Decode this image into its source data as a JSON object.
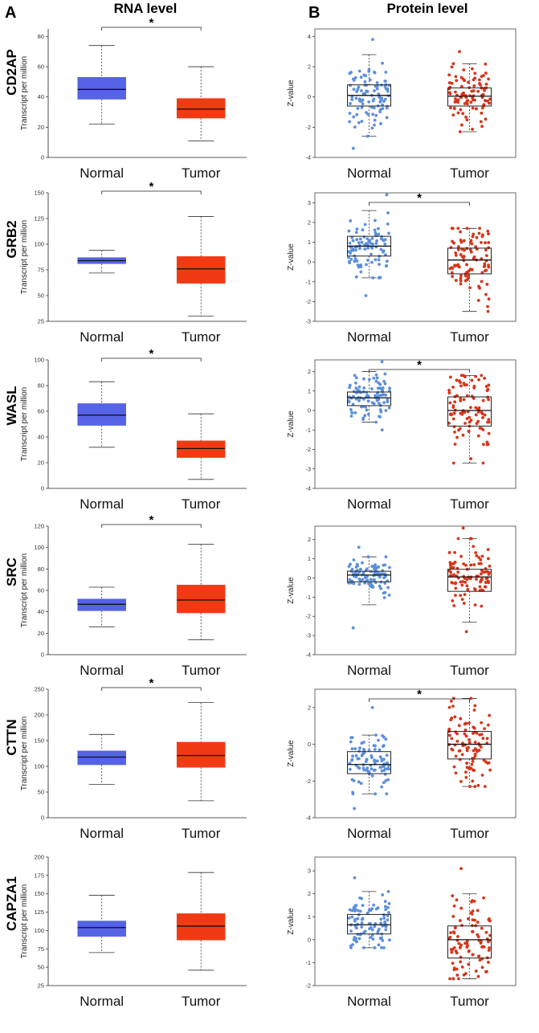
{
  "figure": {
    "panel_a": "A",
    "panel_b": "B",
    "rna_title": "RNA level",
    "protein_title": "Protein level"
  },
  "colors": {
    "normal_rna": "#5563e6",
    "tumor_rna": "#f03a14",
    "normal_dots": "#5b8fdc",
    "tumor_dots": "#d83418"
  },
  "chart_data": [
    {
      "type": "boxplot",
      "gene": "CD2AP",
      "panel": "rna",
      "ylabel": "Transcript per million",
      "categories": [
        "Normal",
        "Tumor"
      ],
      "yticks": [
        0,
        20,
        40,
        60,
        80
      ],
      "ylim": [
        0,
        85
      ],
      "boxes": [
        {
          "name": "Normal",
          "whisker_low": 22,
          "q1": 38.5,
          "median": 45,
          "q3": 53,
          "whisker_high": 74
        },
        {
          "name": "Tumor",
          "whisker_low": 11,
          "q1": 26,
          "median": 32,
          "q3": 39,
          "whisker_high": 60
        }
      ],
      "significance": "*"
    },
    {
      "type": "boxplot",
      "gene": "CD2AP",
      "panel": "protein",
      "ylabel": "Z-value",
      "categories": [
        "Normal",
        "Tumor"
      ],
      "yticks": [
        -4,
        -2,
        0,
        2,
        4
      ],
      "ylim": [
        -4,
        4.5
      ],
      "boxes": [
        {
          "name": "Normal",
          "whisker_low": -2.6,
          "q1": -0.6,
          "median": 0.1,
          "q3": 0.8,
          "whisker_high": 2.8,
          "points_low": -3.4,
          "points_high": 3.8
        },
        {
          "name": "Tumor",
          "whisker_low": -2.3,
          "q1": -0.6,
          "median": 0.05,
          "q3": 0.6,
          "whisker_high": 2.2,
          "points_low": -2.3,
          "points_high": 3.0
        }
      ],
      "significance": ""
    },
    {
      "type": "boxplot",
      "gene": "GRB2",
      "panel": "rna",
      "ylabel": "Transcript per million",
      "categories": [
        "Normal",
        "Tumor"
      ],
      "yticks": [
        25,
        50,
        75,
        100,
        125,
        150
      ],
      "ylim": [
        25,
        150
      ],
      "boxes": [
        {
          "name": "Normal",
          "whisker_low": 72,
          "q1": 81,
          "median": 84,
          "q3": 87,
          "whisker_high": 94
        },
        {
          "name": "Tumor",
          "whisker_low": 30,
          "q1": 62,
          "median": 76,
          "q3": 88,
          "whisker_high": 127
        }
      ],
      "significance": "*"
    },
    {
      "type": "boxplot",
      "gene": "GRB2",
      "panel": "protein",
      "ylabel": "Z-value",
      "categories": [
        "Normal",
        "Tumor"
      ],
      "yticks": [
        -3,
        -2,
        -1,
        0,
        1,
        2,
        3
      ],
      "ylim": [
        -3,
        3.5
      ],
      "boxes": [
        {
          "name": "Normal",
          "whisker_low": -0.8,
          "q1": 0.3,
          "median": 0.8,
          "q3": 1.3,
          "whisker_high": 2.6,
          "points_low": -1.7,
          "points_high": 3.4
        },
        {
          "name": "Tumor",
          "whisker_low": -2.5,
          "q1": -0.6,
          "median": 0.1,
          "q3": 0.7,
          "whisker_high": 1.7,
          "points_low": -2.5,
          "points_high": 1.7
        }
      ],
      "significance": "*"
    },
    {
      "type": "boxplot",
      "gene": "WASL",
      "panel": "rna",
      "ylabel": "Transcript per million",
      "categories": [
        "Normal",
        "Tumor"
      ],
      "yticks": [
        0,
        20,
        40,
        60,
        80,
        100
      ],
      "ylim": [
        0,
        100
      ],
      "boxes": [
        {
          "name": "Normal",
          "whisker_low": 32,
          "q1": 49,
          "median": 57,
          "q3": 66,
          "whisker_high": 83
        },
        {
          "name": "Tumor",
          "whisker_low": 7,
          "q1": 24,
          "median": 31,
          "q3": 37,
          "whisker_high": 58
        }
      ],
      "significance": "*"
    },
    {
      "type": "boxplot",
      "gene": "WASL",
      "panel": "protein",
      "ylabel": "Z-value",
      "categories": [
        "Normal",
        "Tumor"
      ],
      "yticks": [
        -4,
        -3,
        -2,
        -1,
        0,
        1,
        2
      ],
      "ylim": [
        -4,
        2.6
      ],
      "boxes": [
        {
          "name": "Normal",
          "whisker_low": -0.6,
          "q1": 0.25,
          "median": 0.65,
          "q3": 0.95,
          "whisker_high": 2.0,
          "points_low": -1.0,
          "points_high": 2.5
        },
        {
          "name": "Tumor",
          "whisker_low": -2.7,
          "q1": -0.8,
          "median": 0.0,
          "q3": 0.7,
          "whisker_high": 1.8,
          "points_low": -2.7,
          "points_high": 1.8
        }
      ],
      "significance": "*"
    },
    {
      "type": "boxplot",
      "gene": "SRC",
      "panel": "rna",
      "ylabel": "Transcript per million",
      "categories": [
        "Normal",
        "Tumor"
      ],
      "yticks": [
        0,
        20,
        40,
        60,
        80,
        100,
        120
      ],
      "ylim": [
        0,
        120
      ],
      "boxes": [
        {
          "name": "Normal",
          "whisker_low": 26,
          "q1": 41,
          "median": 47,
          "q3": 52,
          "whisker_high": 63
        },
        {
          "name": "Tumor",
          "whisker_low": 14,
          "q1": 39,
          "median": 51,
          "q3": 65,
          "whisker_high": 103
        }
      ],
      "significance": "*"
    },
    {
      "type": "boxplot",
      "gene": "SRC",
      "panel": "protein",
      "ylabel": "Z-value",
      "categories": [
        "Normal",
        "Tumor"
      ],
      "yticks": [
        -4,
        -3,
        -2,
        -1,
        0,
        1,
        2
      ],
      "ylim": [
        -4,
        2.7
      ],
      "boxes": [
        {
          "name": "Normal",
          "whisker_low": -1.4,
          "q1": -0.2,
          "median": 0.15,
          "q3": 0.35,
          "whisker_high": 1.1,
          "points_low": -2.6,
          "points_high": 1.6
        },
        {
          "name": "Tumor",
          "whisker_low": -2.3,
          "q1": -0.7,
          "median": 0.05,
          "q3": 0.45,
          "whisker_high": 2.05,
          "points_low": -2.8,
          "points_high": 2.6
        }
      ],
      "significance": ""
    },
    {
      "type": "boxplot",
      "gene": "CTTN",
      "panel": "rna",
      "ylabel": "Transcript per million",
      "categories": [
        "Normal",
        "Tumor"
      ],
      "yticks": [
        0,
        50,
        100,
        150,
        200,
        250
      ],
      "ylim": [
        0,
        250
      ],
      "boxes": [
        {
          "name": "Normal",
          "whisker_low": 65,
          "q1": 103,
          "median": 118,
          "q3": 130,
          "whisker_high": 162
        },
        {
          "name": "Tumor",
          "whisker_low": 33,
          "q1": 98,
          "median": 121,
          "q3": 147,
          "whisker_high": 224
        }
      ],
      "significance": "*"
    },
    {
      "type": "boxplot",
      "gene": "CTTN",
      "panel": "protein",
      "ylabel": "Z-value",
      "categories": [
        "Normal",
        "Tumor"
      ],
      "yticks": [
        -4,
        -2,
        0,
        2
      ],
      "ylim": [
        -4,
        3.0
      ],
      "boxes": [
        {
          "name": "Normal",
          "whisker_low": -2.7,
          "q1": -1.6,
          "median": -1.1,
          "q3": -0.4,
          "whisker_high": 0.5,
          "points_low": -3.5,
          "points_high": 2.0
        },
        {
          "name": "Tumor",
          "whisker_low": -2.3,
          "q1": -0.8,
          "median": 0.0,
          "q3": 0.7,
          "whisker_high": 2.5,
          "points_low": -2.3,
          "points_high": 2.5
        }
      ],
      "significance": "*"
    },
    {
      "type": "boxplot",
      "gene": "CAPZA1",
      "panel": "rna",
      "ylabel": "Transcript per million",
      "categories": [
        "Normal",
        "Tumor"
      ],
      "yticks": [
        25,
        50,
        75,
        100,
        125,
        150,
        175,
        200
      ],
      "ylim": [
        25,
        200
      ],
      "boxes": [
        {
          "name": "Normal",
          "whisker_low": 70,
          "q1": 92,
          "median": 104,
          "q3": 113,
          "whisker_high": 148
        },
        {
          "name": "Tumor",
          "whisker_low": 46,
          "q1": 87,
          "median": 106,
          "q3": 123,
          "whisker_high": 179
        }
      ],
      "significance": ""
    },
    {
      "type": "boxplot",
      "gene": "CAPZA1",
      "panel": "protein",
      "ylabel": "Z-value",
      "categories": [
        "Normal",
        "Tumor"
      ],
      "yticks": [
        -2,
        -1,
        0,
        1,
        2,
        3
      ],
      "ylim": [
        -2,
        3.6
      ],
      "boxes": [
        {
          "name": "Normal",
          "whisker_low": -0.35,
          "q1": 0.25,
          "median": 0.65,
          "q3": 1.1,
          "whisker_high": 2.1,
          "points_low": -0.35,
          "points_high": 2.7
        },
        {
          "name": "Tumor",
          "whisker_low": -1.7,
          "q1": -0.8,
          "median": 0.0,
          "q3": 0.6,
          "whisker_high": 2.0,
          "points_low": -1.7,
          "points_high": 3.1
        }
      ],
      "significance": ""
    }
  ]
}
